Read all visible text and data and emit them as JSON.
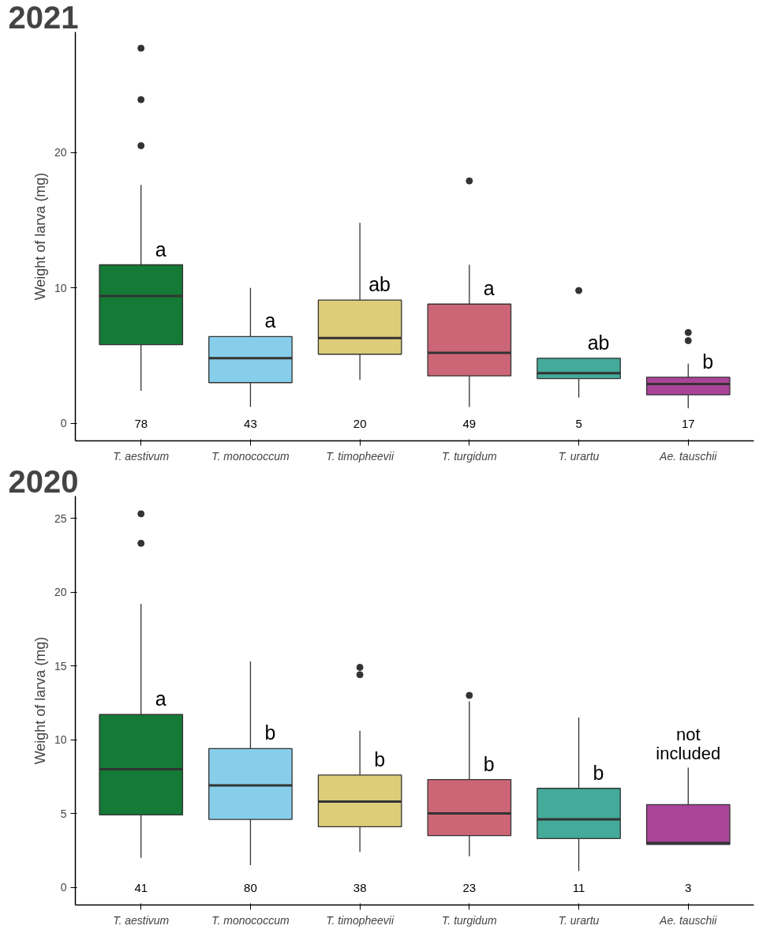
{
  "chart_data": [
    {
      "type": "box",
      "title": "2021",
      "ylabel": "Weight of larva (mg)",
      "categories": [
        "T. aestivum",
        "T. monococcum",
        "T. timopheevii",
        "T. turgidum",
        "T. urartu",
        "Ae. tauschii"
      ],
      "colors": [
        "#147a35",
        "#87ceeb",
        "#ddcd78",
        "#cc6677",
        "#44aa99",
        "#aa4499"
      ],
      "boxes": [
        {
          "low": 2.4,
          "q1": 5.8,
          "median": 9.4,
          "q3": 11.7,
          "high": 17.6,
          "outliers": [
            27.7,
            23.9,
            20.5
          ]
        },
        {
          "low": 1.2,
          "q1": 3.0,
          "median": 4.8,
          "q3": 6.4,
          "high": 10.0
        },
        {
          "low": 3.2,
          "q1": 5.1,
          "median": 6.3,
          "q3": 9.1,
          "high": 14.8
        },
        {
          "low": 1.2,
          "q1": 3.5,
          "median": 5.2,
          "q3": 8.8,
          "high": 11.7,
          "outliers": [
            17.9
          ]
        },
        {
          "low": 1.9,
          "q1": 3.3,
          "median": 3.7,
          "q3": 4.8,
          "high": 4.8,
          "outliers": [
            9.8
          ]
        },
        {
          "low": 1.1,
          "q1": 2.1,
          "median": 2.9,
          "q3": 3.4,
          "high": 4.4,
          "outliers": [
            6.7,
            6.1
          ]
        }
      ],
      "ylim": [
        -1.3,
        28.9
      ],
      "yticks": [
        0,
        10,
        20
      ],
      "grid": false,
      "annotations": [
        "a",
        "a",
        "ab",
        "a",
        "ab",
        "b",
        "78",
        "43",
        "20",
        "49",
        "5",
        "17"
      ]
    },
    {
      "type": "box",
      "title": "2020",
      "ylabel": "Weight of larva (mg)",
      "categories": [
        "T. aestivum",
        "T. monococcum",
        "T. timopheevii",
        "T. turgidum",
        "T. urartu",
        "Ae. tauschii"
      ],
      "colors": [
        "#147a35",
        "#87ceeb",
        "#ddcd78",
        "#cc6677",
        "#44aa99",
        "#aa4499"
      ],
      "boxes": [
        {
          "low": 2.0,
          "q1": 4.9,
          "median": 8.0,
          "q3": 11.7,
          "high": 19.2,
          "outliers": [
            25.3,
            23.3
          ]
        },
        {
          "low": 1.5,
          "q1": 4.6,
          "median": 6.9,
          "q3": 9.4,
          "high": 15.3
        },
        {
          "low": 2.4,
          "q1": 4.1,
          "median": 5.8,
          "q3": 7.6,
          "high": 10.6,
          "outliers": [
            14.9,
            14.4
          ]
        },
        {
          "low": 2.1,
          "q1": 3.5,
          "median": 5.0,
          "q3": 7.3,
          "high": 12.6,
          "outliers": [
            13.0
          ]
        },
        {
          "low": 1.1,
          "q1": 3.3,
          "median": 4.6,
          "q3": 6.7,
          "high": 11.5
        },
        {
          "low": 2.9,
          "q1": 2.9,
          "median": 3.0,
          "q3": 5.6,
          "high": 8.1
        }
      ],
      "ylim": [
        -1.2,
        26.5
      ],
      "yticks": [
        0,
        5,
        10,
        15,
        20,
        25
      ],
      "grid": false,
      "annotations": [
        "a",
        "b",
        "b",
        "b",
        "b",
        "not\nincluded",
        "41",
        "80",
        "38",
        "23",
        "11",
        "3"
      ]
    }
  ]
}
